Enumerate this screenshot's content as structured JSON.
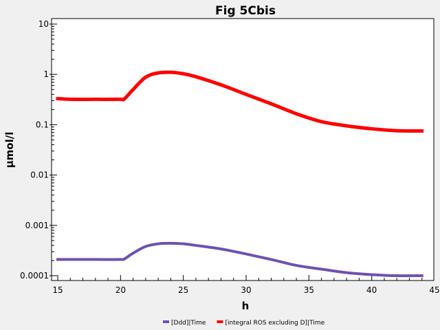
{
  "chart_data": {
    "type": "line",
    "title": "Fig 5Cbis",
    "xlabel": "h",
    "ylabel": "µmol/l",
    "xlim": [
      15,
      45
    ],
    "ylim": [
      0.0001,
      10
    ],
    "yscale": "log",
    "x_ticks": [
      "15",
      "20",
      "25",
      "30",
      "35",
      "40",
      "45"
    ],
    "y_ticks": [
      "10",
      "1",
      "0.1",
      "0.01",
      "0.001",
      "0.0001"
    ],
    "grid": false,
    "legend_position": "bottom",
    "series": [
      {
        "name": "[Ddd]|Time",
        "color": "#7050b0",
        "x": [
          15,
          16,
          18,
          20,
          20.3,
          21,
          22,
          23,
          24,
          25,
          26,
          28,
          30,
          32,
          34,
          36,
          38,
          40,
          42,
          44
        ],
        "y": [
          0.00021,
          0.00021,
          0.00021,
          0.00021,
          0.000215,
          0.00028,
          0.00038,
          0.00043,
          0.00044,
          0.00043,
          0.0004,
          0.00034,
          0.00027,
          0.00021,
          0.00016,
          0.000135,
          0.000115,
          0.000105,
          0.0001,
          0.0001
        ]
      },
      {
        "name": "[integral ROS excluding D]|Time",
        "color": "#ff0000",
        "x": [
          15,
          16,
          18,
          20,
          20.3,
          21,
          22,
          23,
          24,
          25,
          26,
          28,
          30,
          32,
          34,
          36,
          38,
          40,
          42,
          44
        ],
        "y": [
          0.33,
          0.32,
          0.32,
          0.32,
          0.325,
          0.5,
          0.88,
          1.07,
          1.1,
          1.03,
          0.9,
          0.62,
          0.4,
          0.26,
          0.165,
          0.115,
          0.095,
          0.083,
          0.076,
          0.075
        ]
      }
    ]
  }
}
